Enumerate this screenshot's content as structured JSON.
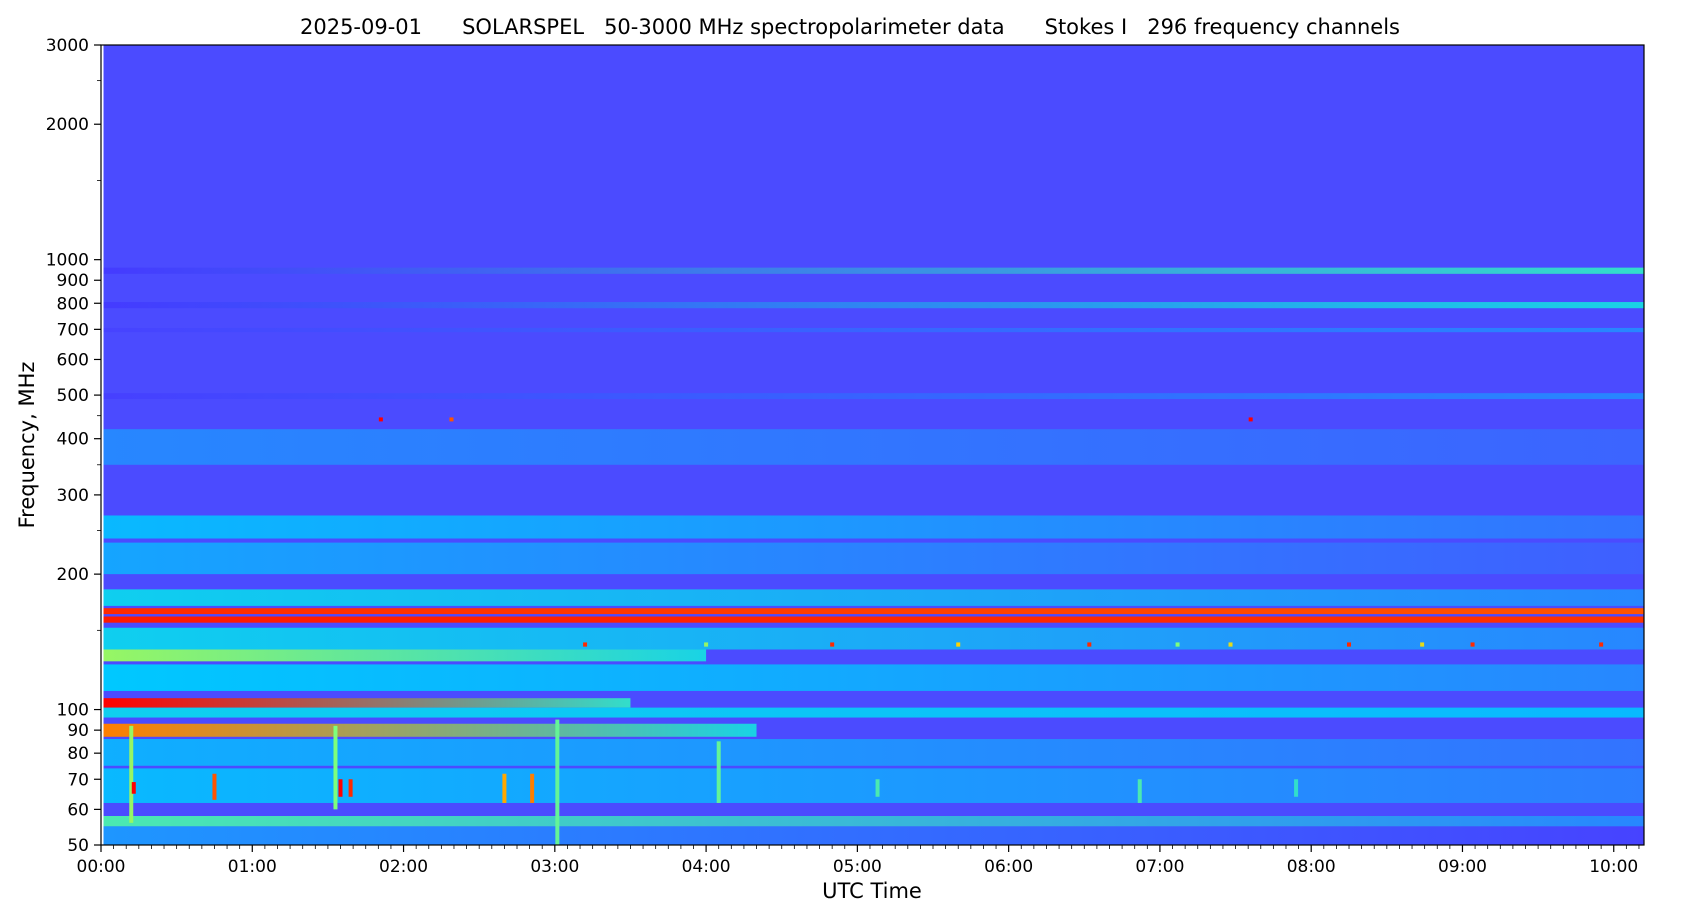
{
  "chart_data": {
    "type": "heatmap",
    "title": "2025-09-01      SOLARSPEL   50-3000 MHz spectropolarimeter data      Stokes I   296 frequency channels",
    "xlabel": "UTC Time",
    "ylabel": "Frequency, MHz",
    "x_range_utc": [
      "00:00",
      "10:12"
    ],
    "y_range_mhz": [
      50,
      3000
    ],
    "y_scale": "log",
    "grid": false,
    "x_ticks": [
      "00:00",
      "01:00",
      "02:00",
      "03:00",
      "04:00",
      "05:00",
      "06:00",
      "07:00",
      "08:00",
      "09:00",
      "10:00"
    ],
    "y_ticks": [
      {
        "value": 50,
        "label": "50"
      },
      {
        "value": 60,
        "label": "60"
      },
      {
        "value": 70,
        "label": "70"
      },
      {
        "value": 80,
        "label": "80"
      },
      {
        "value": 90,
        "label": "90"
      },
      {
        "value": 100,
        "label": "100"
      },
      {
        "value": 200,
        "label": "200"
      },
      {
        "value": 300,
        "label": "300"
      },
      {
        "value": 400,
        "label": "400"
      },
      {
        "value": 500,
        "label": "500"
      },
      {
        "value": 600,
        "label": "600"
      },
      {
        "value": 700,
        "label": "700"
      },
      {
        "value": 800,
        "label": "800"
      },
      {
        "value": 900,
        "label": "900"
      },
      {
        "value": 1000,
        "label": "1000"
      },
      {
        "value": 2000,
        "label": "2000"
      },
      {
        "value": 3000,
        "label": "3000"
      }
    ],
    "y_minor_ticks": [
      150,
      250,
      350,
      450,
      1500,
      2500
    ],
    "data_start_utc": "00:01",
    "colormap": [
      "#4b4bff",
      "#00c8ff",
      "#7dff7d",
      "#ffd200",
      "#ff0000"
    ],
    "background_level": 0.0,
    "bands": [
      {
        "f_lo": 930,
        "f_hi": 960,
        "start": "00:01",
        "end": "10:12",
        "level_start": -0.3,
        "level_end": 0.35
      },
      {
        "f_lo": 780,
        "f_hi": 805,
        "start": "00:01",
        "end": "10:12",
        "level_start": -0.3,
        "level_end": 0.3
      },
      {
        "f_lo": 690,
        "f_hi": 705,
        "start": "00:01",
        "end": "10:12",
        "level_start": -0.15,
        "level_end": 0.12
      },
      {
        "f_lo": 490,
        "f_hi": 505,
        "start": "00:01",
        "end": "10:12",
        "level_start": -0.2,
        "level_end": 0.12
      },
      {
        "f_lo": 350,
        "f_hi": 420,
        "start": "00:01",
        "end": "10:12",
        "level_start": 0.12,
        "level_end": 0.05
      },
      {
        "f_lo": 240,
        "f_hi": 270,
        "start": "00:01",
        "end": "10:12",
        "level_start": 0.22,
        "level_end": 0.08
      },
      {
        "f_lo": 200,
        "f_hi": 235,
        "start": "00:01",
        "end": "10:12",
        "level_start": 0.18,
        "level_end": 0.04
      },
      {
        "f_lo": 170,
        "f_hi": 185,
        "start": "00:01",
        "end": "10:12",
        "level_start": 0.28,
        "level_end": 0.12
      },
      {
        "f_lo": 163,
        "f_hi": 168,
        "start": "00:01",
        "end": "10:12",
        "level_start": 0.95,
        "level_end": 0.9
      },
      {
        "f_lo": 156,
        "f_hi": 161,
        "start": "00:01",
        "end": "10:12",
        "level_start": 0.97,
        "level_end": 0.94
      },
      {
        "f_lo": 136,
        "f_hi": 152,
        "start": "00:01",
        "end": "10:12",
        "level_start": 0.28,
        "level_end": 0.12
      },
      {
        "f_lo": 128,
        "f_hi": 136,
        "start": "00:01",
        "end": "04:00",
        "level_start": 0.55,
        "level_end": 0.3
      },
      {
        "f_lo": 110,
        "f_hi": 126,
        "start": "00:01",
        "end": "10:12",
        "level_start": 0.25,
        "level_end": 0.12
      },
      {
        "f_lo": 101,
        "f_hi": 106,
        "start": "00:01",
        "end": "03:30",
        "level_start": 1.0,
        "level_end": 0.35
      },
      {
        "f_lo": 96,
        "f_hi": 101,
        "start": "00:01",
        "end": "10:12",
        "level_start": 0.28,
        "level_end": 0.22
      },
      {
        "f_lo": 87,
        "f_hi": 93,
        "start": "00:01",
        "end": "04:20",
        "level_start": 0.85,
        "level_end": 0.3
      },
      {
        "f_lo": 75,
        "f_hi": 86,
        "start": "00:01",
        "end": "10:12",
        "level_start": 0.2,
        "level_end": 0.08
      },
      {
        "f_lo": 62,
        "f_hi": 74,
        "start": "00:01",
        "end": "10:12",
        "level_start": 0.22,
        "level_end": 0.1
      },
      {
        "f_lo": 55,
        "f_hi": 58,
        "start": "00:01",
        "end": "10:12",
        "level_start": 0.4,
        "level_end": 0.12
      },
      {
        "f_lo": 50,
        "f_hi": 55,
        "start": "00:01",
        "end": "10:12",
        "level_start": 0.15,
        "level_end": -0.15
      }
    ],
    "bursts": [
      {
        "time": "00:12",
        "f_lo": 56,
        "f_hi": 92,
        "level": 0.55
      },
      {
        "time": "00:13",
        "f_lo": 65,
        "f_hi": 69,
        "level": 1.0
      },
      {
        "time": "00:45",
        "f_lo": 63,
        "f_hi": 72,
        "level": 0.9
      },
      {
        "time": "01:33",
        "f_lo": 60,
        "f_hi": 92,
        "level": 0.5
      },
      {
        "time": "01:35",
        "f_lo": 64,
        "f_hi": 70,
        "level": 1.0
      },
      {
        "time": "01:39",
        "f_lo": 64,
        "f_hi": 70,
        "level": 0.95
      },
      {
        "time": "02:40",
        "f_lo": 62,
        "f_hi": 72,
        "level": 0.8
      },
      {
        "time": "02:51",
        "f_lo": 62,
        "f_hi": 72,
        "level": 0.85
      },
      {
        "time": "03:01",
        "f_lo": 50,
        "f_hi": 95,
        "level": 0.45
      },
      {
        "time": "04:05",
        "f_lo": 62,
        "f_hi": 85,
        "level": 0.45
      },
      {
        "time": "05:08",
        "f_lo": 64,
        "f_hi": 70,
        "level": 0.4
      },
      {
        "time": "06:52",
        "f_lo": 62,
        "f_hi": 70,
        "level": 0.4
      },
      {
        "time": "07:54",
        "f_lo": 64,
        "f_hi": 70,
        "level": 0.35
      },
      {
        "time": "01:51",
        "f_lo": 437,
        "f_hi": 446,
        "level": 1.0
      },
      {
        "time": "02:19",
        "f_lo": 437,
        "f_hi": 446,
        "level": 0.9
      },
      {
        "time": "07:36",
        "f_lo": 437,
        "f_hi": 446,
        "level": 1.0
      },
      {
        "time": "03:12",
        "f_lo": 138,
        "f_hi": 141,
        "level": 0.95
      },
      {
        "time": "04:00",
        "f_lo": 138,
        "f_hi": 141,
        "level": 0.55
      },
      {
        "time": "04:50",
        "f_lo": 138,
        "f_hi": 141,
        "level": 0.95
      },
      {
        "time": "05:40",
        "f_lo": 138,
        "f_hi": 141,
        "level": 0.75
      },
      {
        "time": "06:32",
        "f_lo": 138,
        "f_hi": 141,
        "level": 0.95
      },
      {
        "time": "07:07",
        "f_lo": 138,
        "f_hi": 141,
        "level": 0.5
      },
      {
        "time": "07:28",
        "f_lo": 138,
        "f_hi": 141,
        "level": 0.7
      },
      {
        "time": "08:15",
        "f_lo": 138,
        "f_hi": 141,
        "level": 0.95
      },
      {
        "time": "08:44",
        "f_lo": 138,
        "f_hi": 141,
        "level": 0.7
      },
      {
        "time": "09:04",
        "f_lo": 138,
        "f_hi": 141,
        "level": 0.95
      },
      {
        "time": "09:55",
        "f_lo": 138,
        "f_hi": 141,
        "level": 0.95
      }
    ]
  }
}
